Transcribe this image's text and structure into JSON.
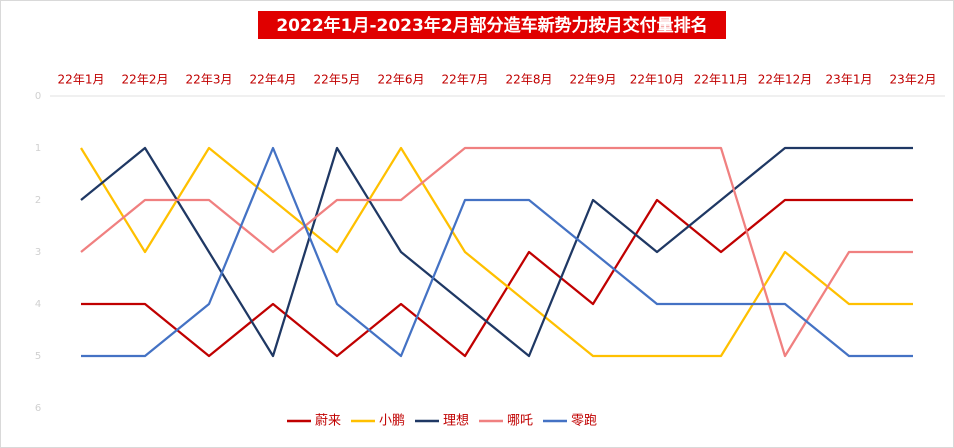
{
  "chart_data": {
    "type": "line",
    "title": "2022年1月-2023年2月部分造车新势力按月交付量排名",
    "categories": [
      "22年1月",
      "22年2月",
      "22年3月",
      "22年4月",
      "22年5月",
      "22年6月",
      "22年7月",
      "22年8月",
      "22年9月",
      "22年10月",
      "22年11月",
      "22年12月",
      "23年1月",
      "23年2月"
    ],
    "series": [
      {
        "name": "蔚来",
        "color": "#c00000",
        "values": [
          4,
          4,
          5,
          4,
          5,
          4,
          5,
          3,
          4,
          2,
          3,
          2,
          2,
          2
        ]
      },
      {
        "name": "小鹏",
        "color": "#ffc000",
        "values": [
          1,
          3,
          1,
          2,
          3,
          1,
          3,
          4,
          5,
          5,
          5,
          3,
          4,
          4
        ]
      },
      {
        "name": "理想",
        "color": "#1f3864",
        "values": [
          2,
          1,
          3,
          5,
          1,
          3,
          4,
          5,
          2,
          3,
          2,
          1,
          1,
          1
        ]
      },
      {
        "name": "哪吒",
        "color": "#f08080",
        "values": [
          3,
          2,
          2,
          3,
          2,
          2,
          1,
          1,
          1,
          1,
          1,
          5,
          3,
          3
        ]
      },
      {
        "name": "零跑",
        "color": "#4472c4",
        "values": [
          5,
          5,
          4,
          1,
          4,
          5,
          2,
          2,
          3,
          4,
          4,
          4,
          5,
          5
        ]
      }
    ],
    "ylim": [
      0,
      6
    ],
    "yticks": [
      0,
      1,
      2,
      3,
      4,
      5,
      6
    ],
    "y_inverted": true,
    "legend": "bottom"
  }
}
